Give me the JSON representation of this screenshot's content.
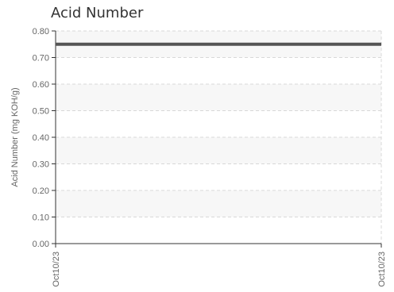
{
  "chart_data": {
    "type": "line",
    "title": "Acid Number",
    "xlabel": "",
    "ylabel": "Acid Number (mg KOH/g)",
    "categories": [
      "Oct10/23",
      "Oct10/23"
    ],
    "series": [
      {
        "values": [
          0.75,
          0.75
        ]
      }
    ],
    "ylim": [
      0,
      0.8
    ],
    "yticks": [
      "0.00",
      "0.10",
      "0.20",
      "0.30",
      "0.40",
      "0.50",
      "0.60",
      "0.70",
      "0.80"
    ],
    "grid": true,
    "legend": "none",
    "colors": {
      "line": "#555555",
      "band": "#f7f7f7",
      "grid": "#d8d8d8",
      "axis": "#333333"
    }
  }
}
